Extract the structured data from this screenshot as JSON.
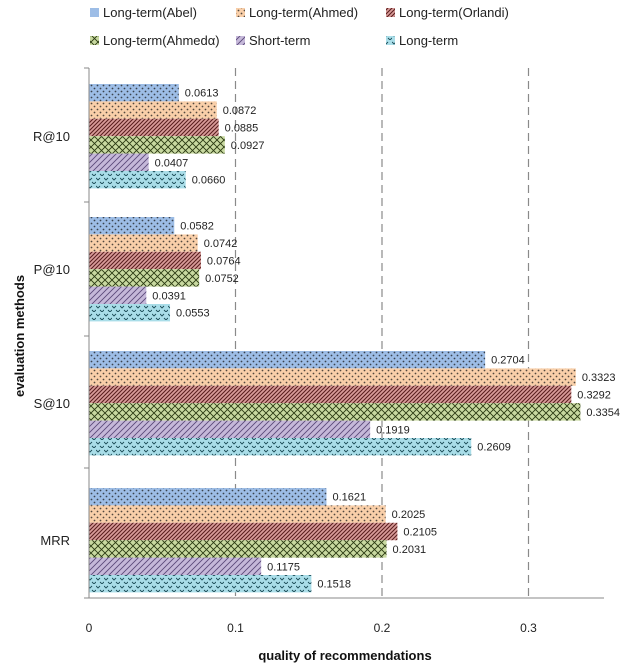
{
  "chart_data": {
    "type": "bar",
    "orientation": "horizontal",
    "xlabel": "quality of recommendations",
    "ylabel": "evaluation methods",
    "xlim": [
      0,
      0.35
    ],
    "xticks": [
      0,
      0.1,
      0.2,
      0.3
    ],
    "xtick_labels": [
      "0",
      "0.1",
      "0.2",
      "0.3"
    ],
    "grid": "vertical dashed",
    "legend_position": "top",
    "categories": [
      "R@10",
      "P@10",
      "S@10",
      "MRR"
    ],
    "series": [
      {
        "name": "Long-term(Abel)",
        "color": "#9dbde6",
        "pattern": "dots",
        "values": [
          0.0613,
          0.0582,
          0.2704,
          0.1621
        ],
        "labels": [
          "0.0613",
          "0.0582",
          "0.2704",
          "0.1621"
        ]
      },
      {
        "name": "Long-term(Ahmed)",
        "color": "#f9cfa9",
        "pattern": "dots",
        "values": [
          0.0872,
          0.0742,
          0.3323,
          0.2025
        ],
        "labels": [
          "0.0872",
          "0.0742",
          "0.3323",
          "0.2025"
        ]
      },
      {
        "name": "Long-term(Orlandi)",
        "color": "#d99c9a",
        "pattern": "diagonal",
        "values": [
          0.0885,
          0.0764,
          0.3292,
          0.2105
        ],
        "labels": [
          "0.0885",
          "0.0764",
          "0.3292",
          "0.2105"
        ]
      },
      {
        "name": "Long-term(Ahmedα)",
        "color": "#c8d9a0",
        "pattern": "crosshatch",
        "values": [
          0.0927,
          0.0752,
          0.3354,
          0.2031
        ],
        "labels": [
          "0.0927",
          "0.0752",
          "0.3354",
          "0.2031"
        ]
      },
      {
        "name": "Short-term",
        "color": "#c5b8d9",
        "pattern": "diagonal-light",
        "values": [
          0.0407,
          0.0391,
          0.1919,
          0.1175
        ],
        "labels": [
          "0.0407",
          "0.0391",
          "0.1919",
          "0.1175"
        ]
      },
      {
        "name": "Long-term",
        "color": "#a9dde8",
        "pattern": "zigzag",
        "values": [
          0.066,
          0.0553,
          0.2609,
          0.1518
        ],
        "labels": [
          "0.0660",
          "0.0553",
          "0.2609",
          "0.1518"
        ]
      }
    ]
  }
}
